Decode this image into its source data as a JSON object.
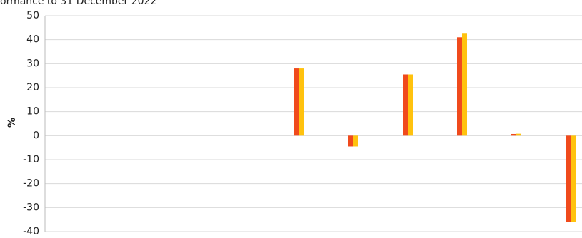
{
  "chart_data": {
    "type": "bar",
    "title": "ormance to 31 December 2022",
    "ylabel": "%",
    "categories": [
      null,
      null,
      null,
      null,
      null,
      null,
      null,
      null,
      null,
      null
    ],
    "series": [
      {
        "color": "#f04a1c",
        "values": [
          null,
          null,
          null,
          null,
          28,
          -4.5,
          25.5,
          41,
          0.7,
          -36
        ]
      },
      {
        "color": "#ffc20e",
        "values": [
          null,
          null,
          null,
          null,
          28,
          -4.5,
          25.5,
          42.5,
          0.8,
          -36
        ]
      }
    ],
    "ylim": [
      -40,
      50
    ],
    "yticks": [
      -40,
      -30,
      -20,
      -10,
      0,
      10,
      20,
      30,
      40,
      50
    ],
    "grid": true
  }
}
